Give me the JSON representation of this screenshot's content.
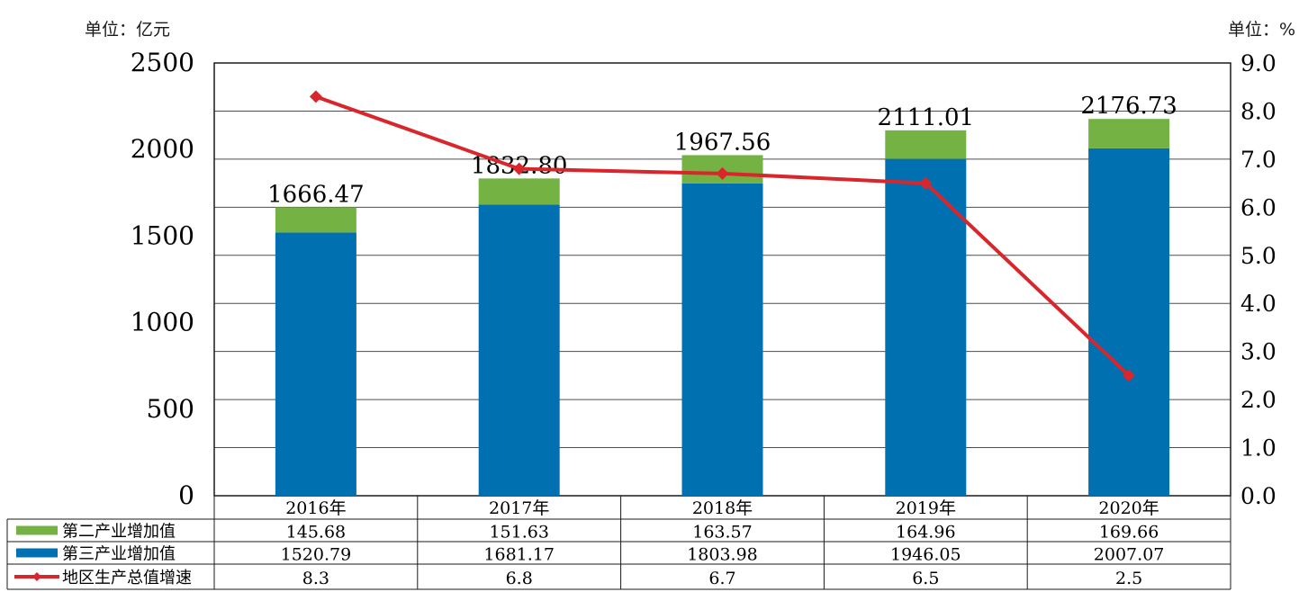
{
  "units": {
    "left": "单位：亿元",
    "right": "单位：%"
  },
  "chart_data": {
    "type": "bar",
    "stacked": true,
    "categories": [
      "2016年",
      "2017年",
      "2018年",
      "2019年",
      "2020年"
    ],
    "series": [
      {
        "name": "第三产业增加值",
        "values": [
          1520.79,
          1681.17,
          1803.98,
          1946.05,
          2007.07
        ],
        "color": "#0070b0",
        "axis": "left"
      },
      {
        "name": "第二产业增加值",
        "values": [
          145.68,
          151.63,
          163.57,
          164.96,
          169.66
        ],
        "color": "#74b243",
        "axis": "left"
      },
      {
        "name": "地区生产总值增速",
        "type": "line",
        "values": [
          8.3,
          6.8,
          6.7,
          6.5,
          2.5
        ],
        "color": "#d9262c",
        "axis": "right"
      }
    ],
    "totals": [
      "1666.47",
      "1832.80",
      "1967.56",
      "2111.01",
      "2176.73"
    ],
    "y_left": {
      "ylim": [
        0,
        2500
      ],
      "ticks": [
        "0",
        "500",
        "1000",
        "1500",
        "2000",
        "2500"
      ]
    },
    "y_right": {
      "ylim": [
        0,
        9
      ],
      "ticks": [
        "0.0",
        "1.0",
        "2.0",
        "3.0",
        "4.0",
        "5.0",
        "6.0",
        "7.0",
        "8.0",
        "9.0"
      ]
    },
    "grid": true,
    "legend": "data-table-bottom",
    "table_rows": [
      {
        "label": "第二产业增加值",
        "values": [
          "145.68",
          "151.63",
          "163.57",
          "164.96",
          "169.66"
        ]
      },
      {
        "label": "第三产业增加值",
        "values": [
          "1520.79",
          "1681.17",
          "1803.98",
          "1946.05",
          "2007.07"
        ]
      },
      {
        "label": "地区生产总值增速",
        "values": [
          "8.3",
          "6.8",
          "6.7",
          "6.5",
          "2.5"
        ]
      }
    ]
  }
}
